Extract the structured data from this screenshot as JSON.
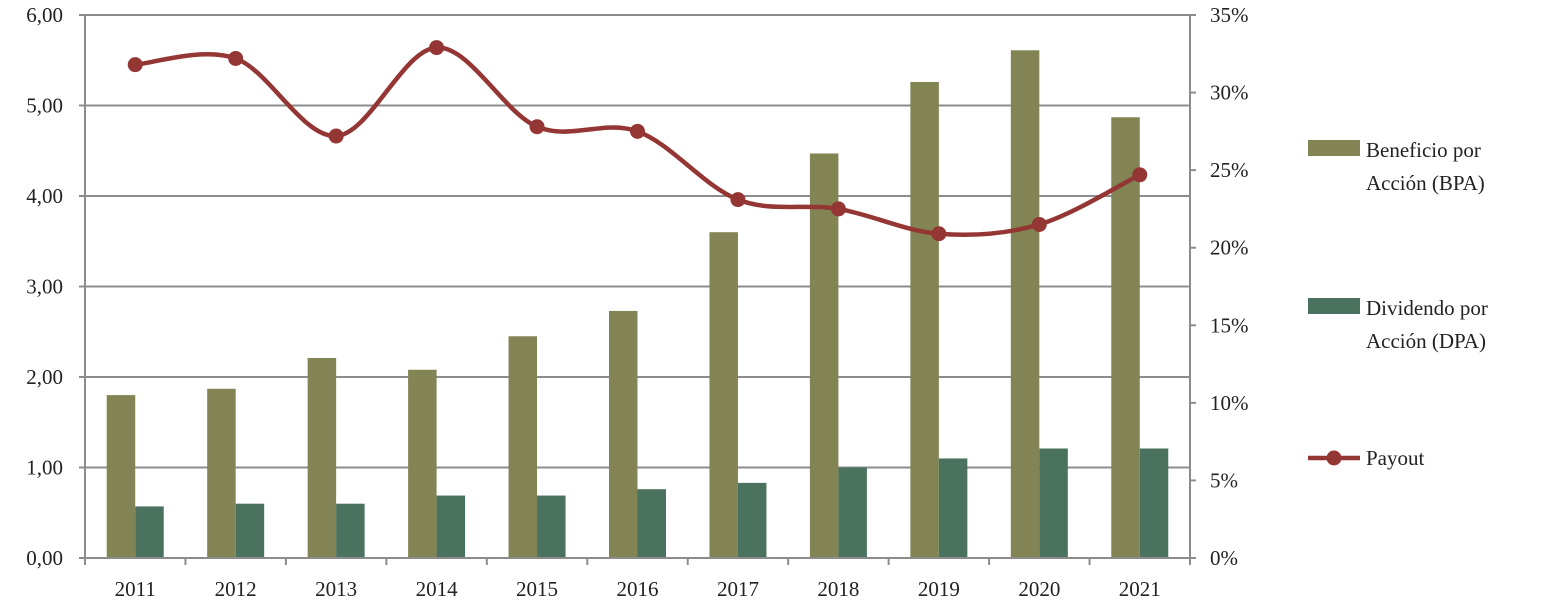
{
  "chart_data": {
    "type": "bar",
    "categories": [
      "2011",
      "2012",
      "2013",
      "2014",
      "2015",
      "2016",
      "2017",
      "2018",
      "2019",
      "2020",
      "2021"
    ],
    "series": [
      {
        "name": "Beneficio por Acción (BPA)",
        "legend_lines": [
          "Beneficio por",
          "Acción (BPA)"
        ],
        "kind": "bar",
        "axis": "left",
        "color": "#828553",
        "values": [
          1.8,
          1.87,
          2.21,
          2.08,
          2.45,
          2.73,
          3.6,
          4.47,
          5.26,
          5.61,
          4.87
        ]
      },
      {
        "name": "Dividendo por Acción (DPA)",
        "legend_lines": [
          "Dividendo por",
          "Acción (DPA)"
        ],
        "kind": "bar",
        "axis": "left",
        "color": "#4a725e",
        "values": [
          0.57,
          0.6,
          0.6,
          0.69,
          0.69,
          0.76,
          0.83,
          1.0,
          1.1,
          1.21,
          1.21
        ]
      },
      {
        "name": "Payout",
        "legend_lines": [
          "Payout"
        ],
        "kind": "line",
        "axis": "right",
        "color": "#943634",
        "values": [
          31.8,
          32.2,
          27.2,
          32.9,
          27.8,
          27.5,
          23.1,
          22.5,
          20.9,
          21.5,
          24.7
        ]
      }
    ],
    "left_axis": {
      "min": 0,
      "max": 6,
      "step": 1,
      "ticks": [
        "0,00",
        "1,00",
        "2,00",
        "3,00",
        "4,00",
        "5,00",
        "6,00"
      ]
    },
    "right_axis": {
      "min": 0,
      "max": 35,
      "step": 5,
      "ticks": [
        "0%",
        "5%",
        "10%",
        "15%",
        "20%",
        "25%",
        "30%",
        "35%"
      ]
    },
    "grid": true,
    "legend": "right"
  }
}
